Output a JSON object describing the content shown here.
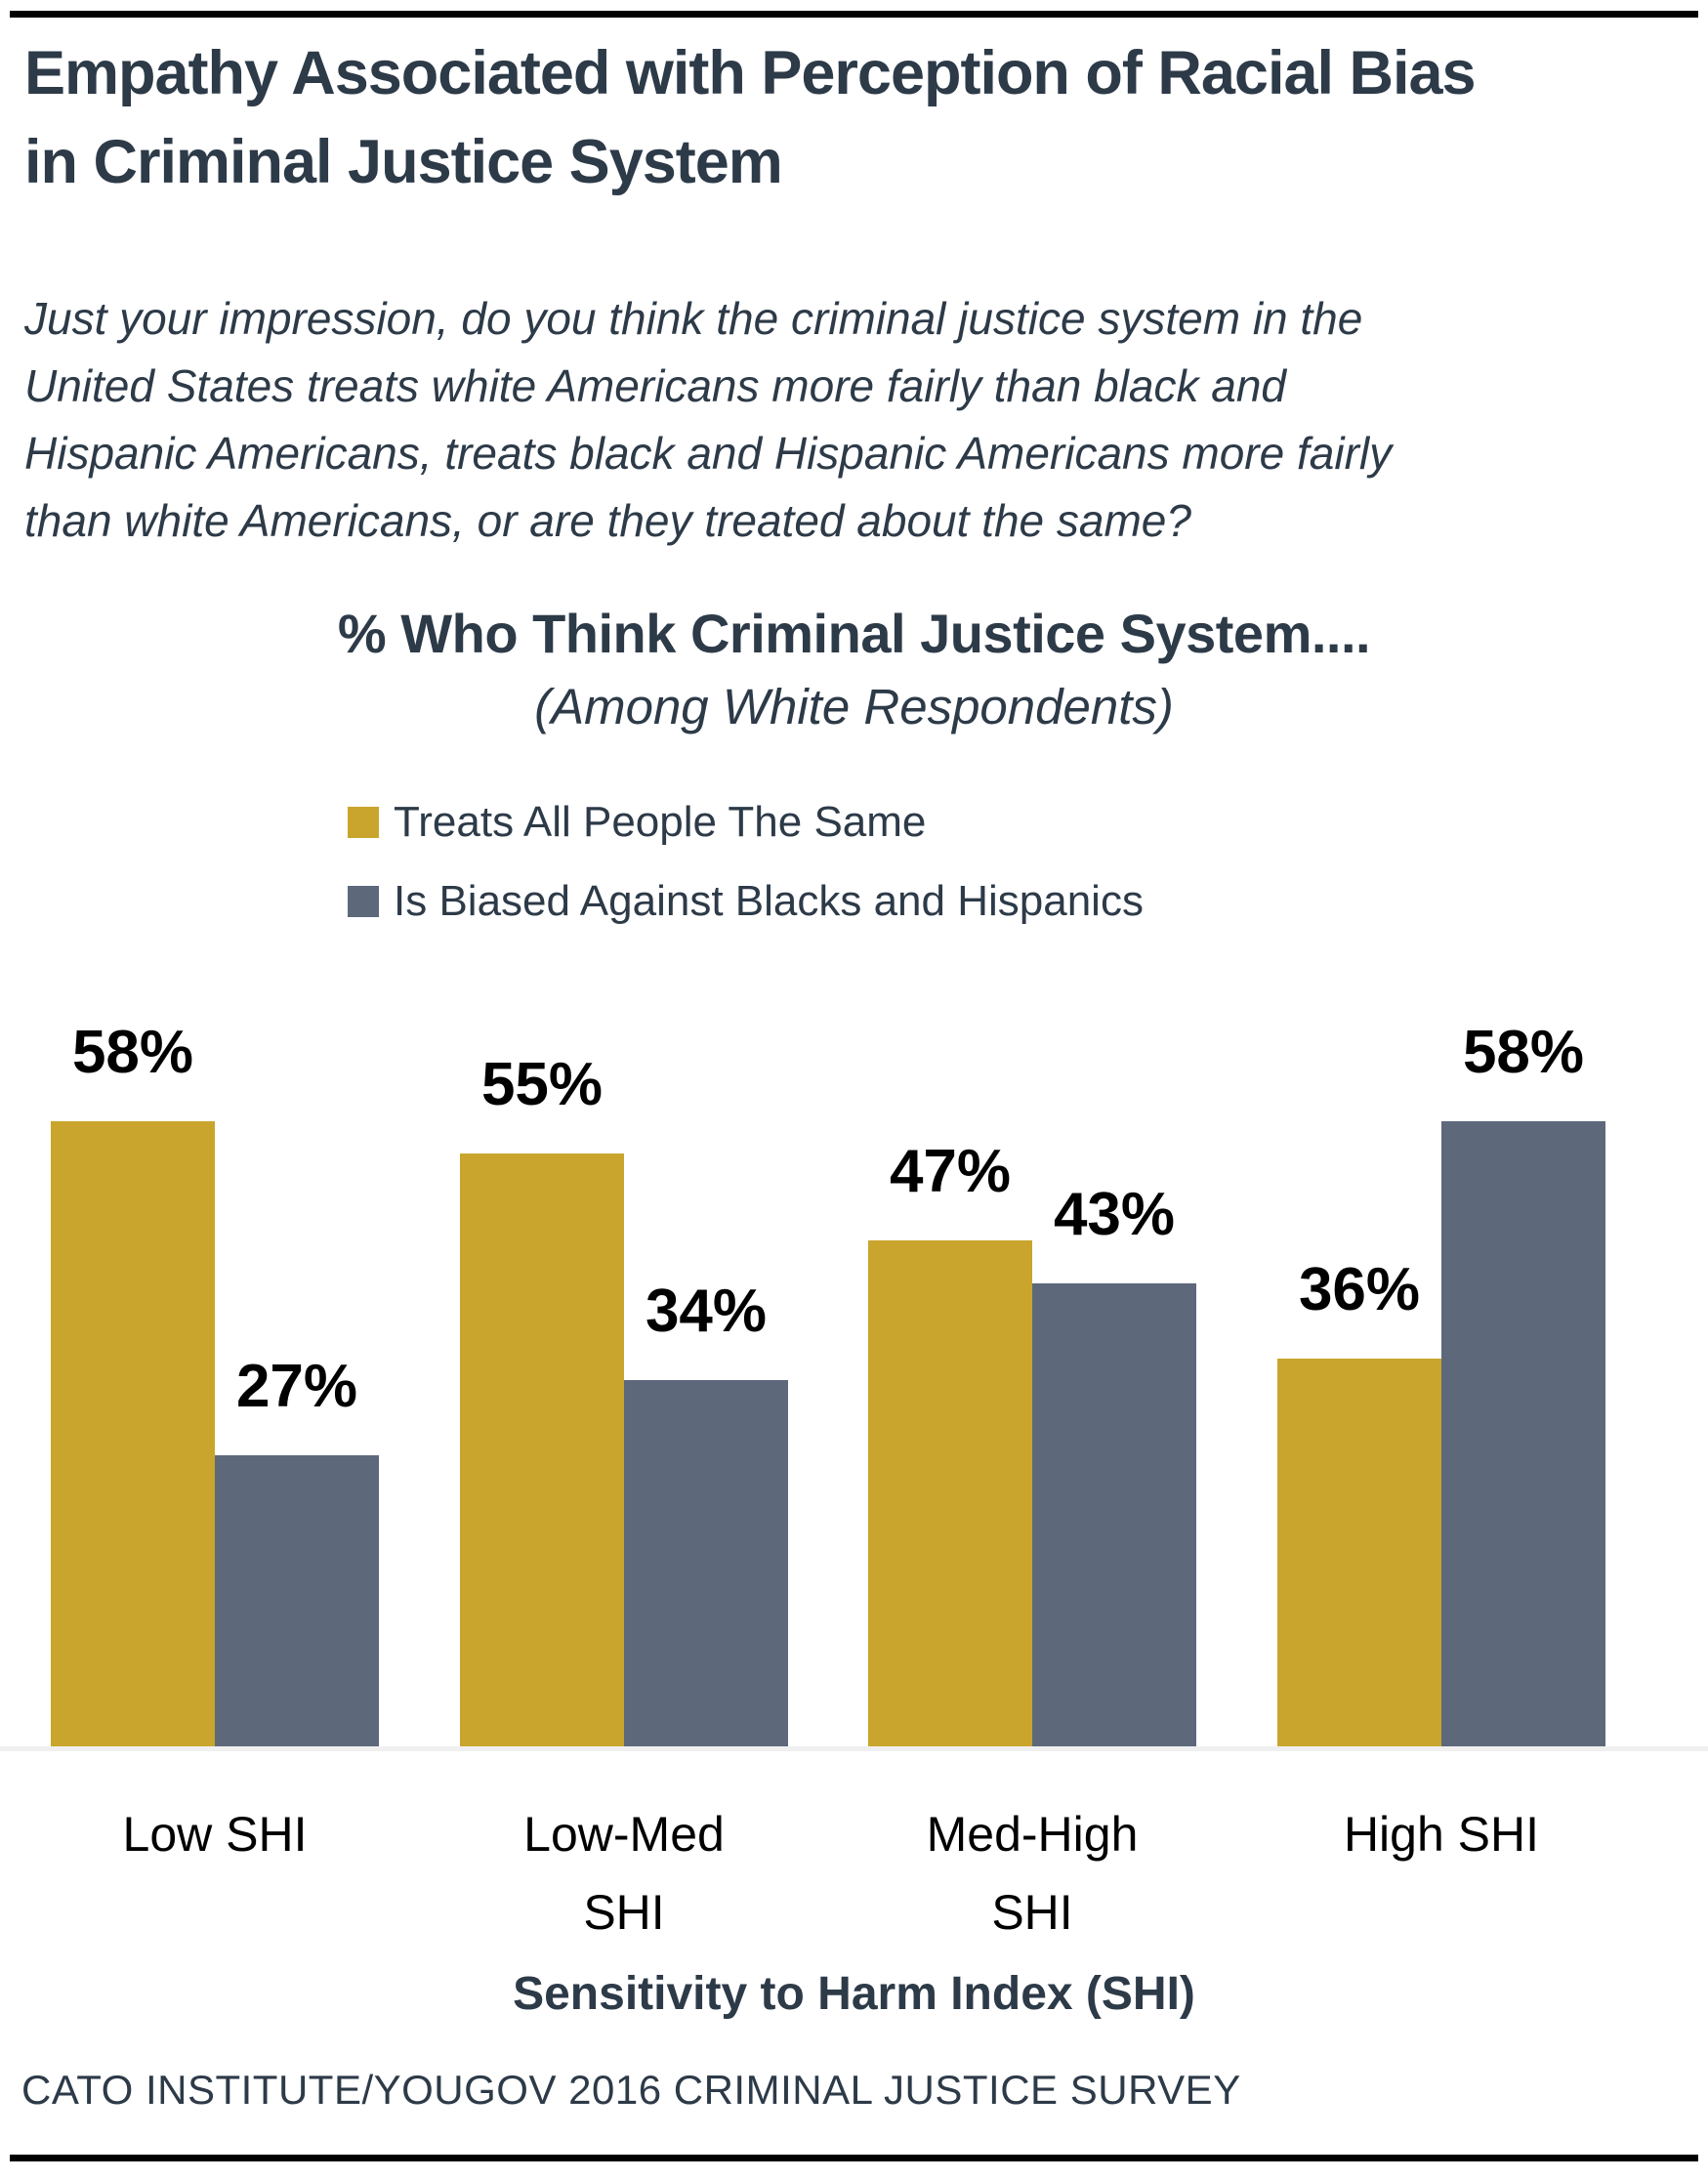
{
  "header": {
    "title_lines": [
      "Empathy Associated with Perception of Racial Bias",
      "in Criminal Justice System"
    ],
    "question_lines": [
      "Just your impression, do you think the criminal justice system in the",
      "United States treats white Americans more fairly than black and",
      "Hispanic Americans, treats black and Hispanic Americans more fairly",
      "than white Americans, or are they treated about the same?"
    ]
  },
  "chart_data": {
    "type": "bar",
    "title": "% Who Think Criminal Justice System....",
    "subtitle": "(Among White Respondents)",
    "categories": [
      "Low SHI",
      "Low-Med SHI",
      "Med-High SHI",
      "High SHI"
    ],
    "series": [
      {
        "name": "Treats All People The Same",
        "color": "#C9A52D",
        "values": [
          58,
          55,
          47,
          36
        ]
      },
      {
        "name": "Is Biased Against Blacks and Hispanics",
        "color": "#5D687B",
        "values": [
          27,
          34,
          43,
          58
        ]
      }
    ],
    "value_suffix": "%",
    "xlabel": "Sensitivity to Harm Index (SHI)",
    "ylabel": "",
    "ylim": [
      0,
      62
    ],
    "grid": false,
    "legend_position": "top-left",
    "value_labels": "above-bars"
  },
  "footer": {
    "source": "CATO INSTITUTE/YOUGOV 2016 CRIMINAL JUSTICE SURVEY"
  },
  "colors": {
    "gold": "#C9A52D",
    "slate": "#5D687B",
    "text_dark": "#2D3A48",
    "label_black": "#000000",
    "rule_black": "#000000",
    "baseline_gray": "#F0F0F1"
  }
}
